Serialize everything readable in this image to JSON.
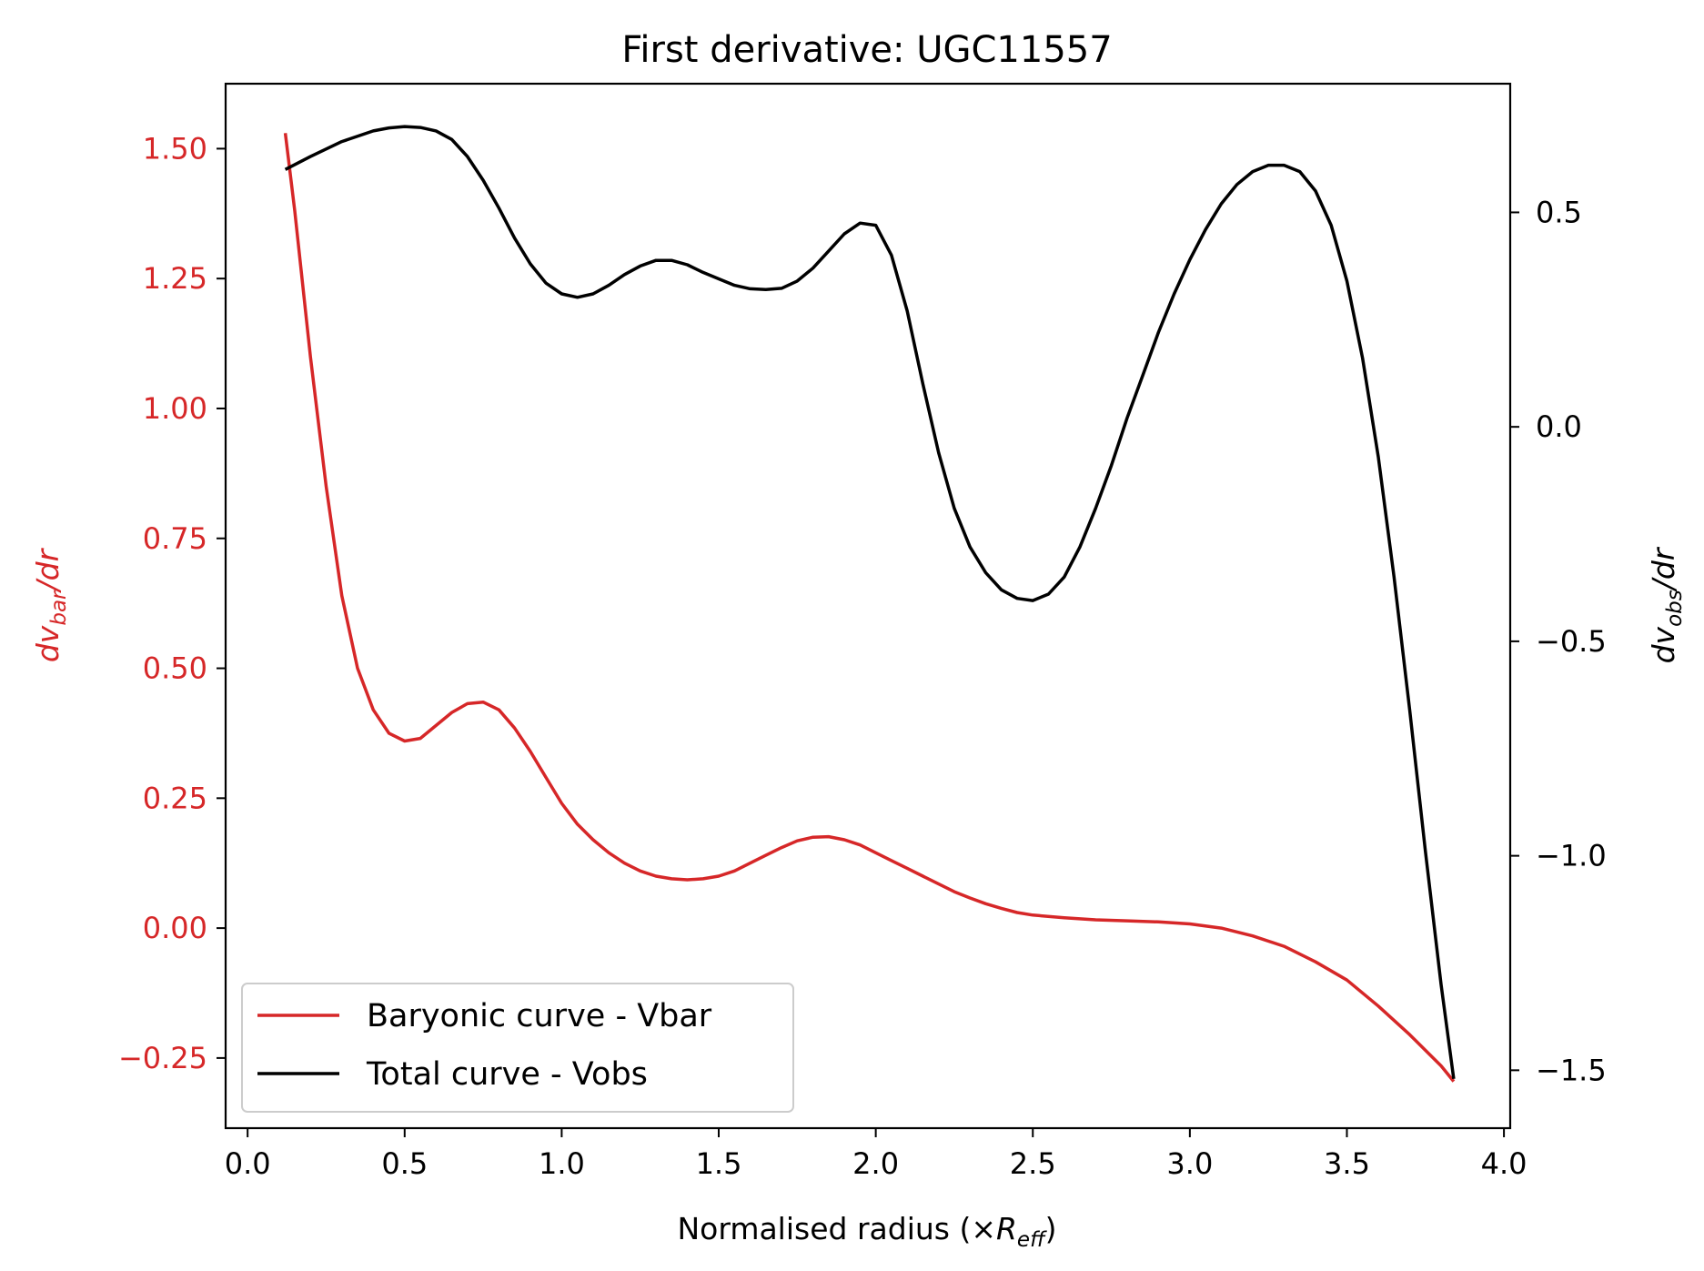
{
  "chart_data": {
    "type": "line",
    "title": "First derivative: UGC11557",
    "xlabel": "Normalised radius (×R_eff)",
    "xlabel_main": "Normalised radius (×",
    "xlabel_var": "R",
    "xlabel_sub": "eff",
    "xlabel_close": ")",
    "ylabel_left": "dv_bar/dr",
    "ylabel_left_pre": "dv",
    "ylabel_left_sub": "bar",
    "ylabel_left_post": "/dr",
    "ylabel_right": "dv_obs/dr",
    "ylabel_right_pre": "dv",
    "ylabel_right_sub": "obs",
    "ylabel_right_post": "/dr",
    "xlim": [
      -0.07,
      4.02
    ],
    "ylim_left": [
      -0.385,
      1.625
    ],
    "ylim_right": [
      -1.635,
      0.8
    ],
    "x_ticks": [
      0.0,
      0.5,
      1.0,
      1.5,
      2.0,
      2.5,
      3.0,
      3.5,
      4.0
    ],
    "x_tick_labels": [
      "0.0",
      "0.5",
      "1.0",
      "1.5",
      "2.0",
      "2.5",
      "3.0",
      "3.5",
      "4.0"
    ],
    "y_left_ticks": [
      -0.25,
      0.0,
      0.25,
      0.5,
      0.75,
      1.0,
      1.25,
      1.5
    ],
    "y_left_tick_labels": [
      "−0.25",
      "0.00",
      "0.25",
      "0.50",
      "0.75",
      "1.00",
      "1.25",
      "1.50"
    ],
    "y_right_ticks": [
      -1.5,
      -1.0,
      -0.5,
      0.0,
      0.5
    ],
    "y_right_tick_labels": [
      "−1.5",
      "−1.0",
      "−0.5",
      "0.0",
      "0.5"
    ],
    "grid": false,
    "legend_position": "lower-left",
    "left_axis_color": "#d62728",
    "right_axis_color": "#000000",
    "series": [
      {
        "name": "Baryonic curve - Vbar",
        "axis": "left",
        "color": "#d62728",
        "points": [
          [
            0.12,
            1.53
          ],
          [
            0.15,
            1.38
          ],
          [
            0.2,
            1.1
          ],
          [
            0.25,
            0.85
          ],
          [
            0.3,
            0.64
          ],
          [
            0.35,
            0.5
          ],
          [
            0.4,
            0.42
          ],
          [
            0.45,
            0.375
          ],
          [
            0.5,
            0.36
          ],
          [
            0.55,
            0.365
          ],
          [
            0.6,
            0.39
          ],
          [
            0.65,
            0.415
          ],
          [
            0.7,
            0.432
          ],
          [
            0.75,
            0.435
          ],
          [
            0.8,
            0.42
          ],
          [
            0.85,
            0.385
          ],
          [
            0.9,
            0.34
          ],
          [
            0.95,
            0.29
          ],
          [
            1.0,
            0.24
          ],
          [
            1.05,
            0.2
          ],
          [
            1.1,
            0.17
          ],
          [
            1.15,
            0.145
          ],
          [
            1.2,
            0.125
          ],
          [
            1.25,
            0.11
          ],
          [
            1.3,
            0.1
          ],
          [
            1.35,
            0.095
          ],
          [
            1.4,
            0.093
          ],
          [
            1.45,
            0.095
          ],
          [
            1.5,
            0.1
          ],
          [
            1.55,
            0.11
          ],
          [
            1.6,
            0.125
          ],
          [
            1.65,
            0.14
          ],
          [
            1.7,
            0.155
          ],
          [
            1.75,
            0.168
          ],
          [
            1.8,
            0.175
          ],
          [
            1.85,
            0.176
          ],
          [
            1.9,
            0.17
          ],
          [
            1.95,
            0.16
          ],
          [
            2.0,
            0.145
          ],
          [
            2.05,
            0.13
          ],
          [
            2.1,
            0.115
          ],
          [
            2.15,
            0.1
          ],
          [
            2.2,
            0.085
          ],
          [
            2.25,
            0.07
          ],
          [
            2.3,
            0.058
          ],
          [
            2.35,
            0.047
          ],
          [
            2.4,
            0.038
          ],
          [
            2.45,
            0.03
          ],
          [
            2.5,
            0.025
          ],
          [
            2.6,
            0.02
          ],
          [
            2.7,
            0.016
          ],
          [
            2.8,
            0.014
          ],
          [
            2.9,
            0.012
          ],
          [
            3.0,
            0.008
          ],
          [
            3.1,
            0.0
          ],
          [
            3.2,
            -0.015
          ],
          [
            3.3,
            -0.035
          ],
          [
            3.4,
            -0.065
          ],
          [
            3.5,
            -0.1
          ],
          [
            3.6,
            -0.15
          ],
          [
            3.7,
            -0.205
          ],
          [
            3.8,
            -0.265
          ],
          [
            3.84,
            -0.295
          ]
        ]
      },
      {
        "name": "Total curve - Vobs",
        "axis": "right",
        "color": "#000000",
        "points": [
          [
            0.12,
            0.6
          ],
          [
            0.2,
            0.63
          ],
          [
            0.3,
            0.665
          ],
          [
            0.4,
            0.69
          ],
          [
            0.45,
            0.697
          ],
          [
            0.5,
            0.7
          ],
          [
            0.55,
            0.698
          ],
          [
            0.6,
            0.69
          ],
          [
            0.65,
            0.67
          ],
          [
            0.7,
            0.63
          ],
          [
            0.75,
            0.575
          ],
          [
            0.8,
            0.51
          ],
          [
            0.85,
            0.44
          ],
          [
            0.9,
            0.38
          ],
          [
            0.95,
            0.335
          ],
          [
            1.0,
            0.31
          ],
          [
            1.05,
            0.302
          ],
          [
            1.1,
            0.31
          ],
          [
            1.15,
            0.33
          ],
          [
            1.2,
            0.355
          ],
          [
            1.25,
            0.375
          ],
          [
            1.3,
            0.388
          ],
          [
            1.35,
            0.388
          ],
          [
            1.4,
            0.378
          ],
          [
            1.45,
            0.36
          ],
          [
            1.5,
            0.345
          ],
          [
            1.55,
            0.33
          ],
          [
            1.6,
            0.322
          ],
          [
            1.65,
            0.32
          ],
          [
            1.7,
            0.323
          ],
          [
            1.75,
            0.34
          ],
          [
            1.8,
            0.37
          ],
          [
            1.85,
            0.41
          ],
          [
            1.9,
            0.45
          ],
          [
            1.95,
            0.475
          ],
          [
            2.0,
            0.47
          ],
          [
            2.05,
            0.4
          ],
          [
            2.1,
            0.27
          ],
          [
            2.15,
            0.1
          ],
          [
            2.2,
            -0.06
          ],
          [
            2.25,
            -0.19
          ],
          [
            2.3,
            -0.28
          ],
          [
            2.35,
            -0.34
          ],
          [
            2.4,
            -0.38
          ],
          [
            2.45,
            -0.4
          ],
          [
            2.5,
            -0.405
          ],
          [
            2.55,
            -0.39
          ],
          [
            2.6,
            -0.35
          ],
          [
            2.65,
            -0.28
          ],
          [
            2.7,
            -0.19
          ],
          [
            2.75,
            -0.09
          ],
          [
            2.8,
            0.02
          ],
          [
            2.85,
            0.12
          ],
          [
            2.9,
            0.22
          ],
          [
            2.95,
            0.31
          ],
          [
            3.0,
            0.39
          ],
          [
            3.05,
            0.46
          ],
          [
            3.1,
            0.52
          ],
          [
            3.15,
            0.565
          ],
          [
            3.2,
            0.595
          ],
          [
            3.25,
            0.61
          ],
          [
            3.3,
            0.61
          ],
          [
            3.35,
            0.595
          ],
          [
            3.4,
            0.55
          ],
          [
            3.45,
            0.47
          ],
          [
            3.5,
            0.34
          ],
          [
            3.55,
            0.16
          ],
          [
            3.6,
            -0.07
          ],
          [
            3.65,
            -0.35
          ],
          [
            3.7,
            -0.66
          ],
          [
            3.75,
            -0.99
          ],
          [
            3.8,
            -1.3
          ],
          [
            3.84,
            -1.52
          ]
        ]
      }
    ]
  }
}
